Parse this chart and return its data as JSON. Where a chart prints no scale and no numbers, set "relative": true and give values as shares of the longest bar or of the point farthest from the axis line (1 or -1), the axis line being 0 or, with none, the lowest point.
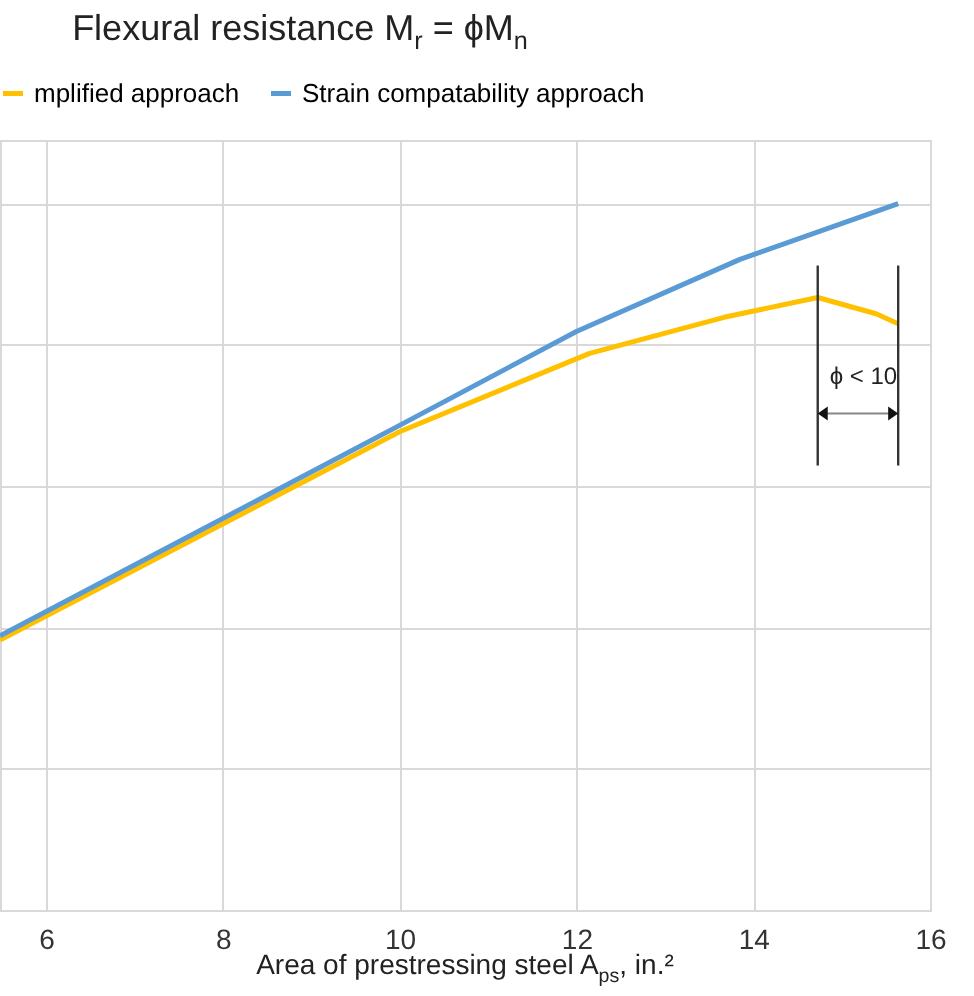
{
  "chart_data": {
    "type": "line",
    "title": "Flexural resistance M$_{r}$ = ϕM$_{n}$",
    "xlabel": "Area of prestressing steel A$_{ps}$, in.²",
    "relative": true,
    "xlim": [
      5.48,
      16
    ],
    "xticks": [
      6,
      8,
      10,
      12,
      14,
      16
    ],
    "grid": true,
    "legend": "top",
    "line_style": "solid",
    "marker": "none",
    "annotations": [
      "ϕ < 10"
    ],
    "series": [
      {
        "name": "mplified approach",
        "color": "#ffc000",
        "x": [
          5.48,
          10.0,
          12.15,
          13.67,
          14.73,
          15.39,
          15.64
        ],
        "values": [
          0.382,
          0.677,
          0.788,
          0.839,
          0.867,
          0.844,
          0.83
        ]
      },
      {
        "name": "Strain compatability approach",
        "color": "#5b9bd5",
        "x": [
          5.48,
          10.0,
          12.0,
          13.85,
          15.64
        ],
        "values": [
          0.388,
          0.686,
          0.819,
          0.921,
          1.0
        ]
      }
    ]
  }
}
